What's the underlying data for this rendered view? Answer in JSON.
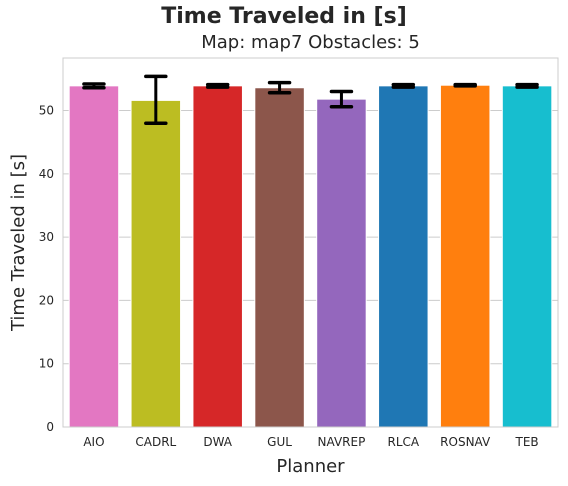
{
  "chart_data": {
    "type": "bar",
    "title": "Time Traveled in [s]",
    "subtitle": "Map: map7 Obstacles: 5",
    "xlabel": "Planner",
    "ylabel": "Time Traveled in [s]",
    "categories": [
      "AIO",
      "CADRL",
      "DWA",
      "GUL",
      "NAVREP",
      "RLCA",
      "ROSNAV",
      "TEB"
    ],
    "values": [
      53.9,
      51.6,
      53.9,
      53.6,
      51.8,
      53.9,
      54.0,
      53.9
    ],
    "error_low": [
      53.6,
      48.0,
      53.7,
      52.8,
      50.6,
      53.7,
      53.9,
      53.7
    ],
    "error_high": [
      54.2,
      55.4,
      54.1,
      54.4,
      53.0,
      54.1,
      54.1,
      54.1
    ],
    "colors": [
      "#e377c2",
      "#bcbd22",
      "#d62728",
      "#8c564b",
      "#9467bd",
      "#1f77b4",
      "#ff7f0e",
      "#17becf"
    ],
    "ylim": [
      0,
      58.3
    ],
    "yticks": [
      0,
      10,
      20,
      30,
      40,
      50
    ],
    "grid": true
  }
}
